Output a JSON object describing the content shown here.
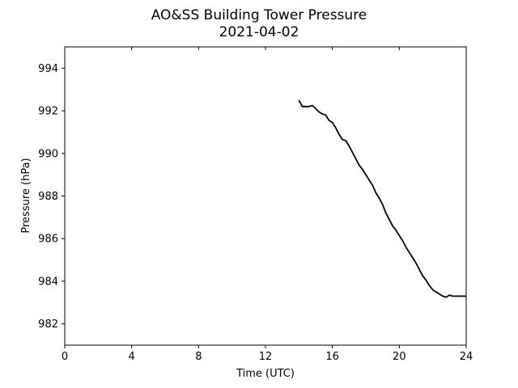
{
  "chart_data": {
    "type": "line",
    "title": "AO&SS Building Tower Pressure",
    "subtitle": "2021-04-02",
    "xlabel": "Time (UTC)",
    "ylabel": "Pressure (hPa)",
    "xlim": [
      0,
      24
    ],
    "ylim": [
      981,
      995
    ],
    "xticks": [
      0,
      4,
      8,
      12,
      16,
      20,
      24
    ],
    "yticks": [
      982,
      984,
      986,
      988,
      990,
      992,
      994
    ],
    "grid": false,
    "legend": "none",
    "line_color": "#000000",
    "series": [
      {
        "x": [
          14.0,
          14.2,
          14.4,
          14.6,
          14.8,
          15.0,
          15.2,
          15.4,
          15.6,
          15.8,
          16.0,
          16.2,
          16.4,
          16.6,
          16.8,
          17.0,
          17.2,
          17.4,
          17.6,
          17.8,
          18.0,
          18.2,
          18.4,
          18.6,
          18.8,
          19.0,
          19.2,
          19.4,
          19.6,
          19.8,
          20.0,
          20.2,
          20.4,
          20.6,
          20.8,
          21.0,
          21.2,
          21.4,
          21.6,
          21.8,
          22.0,
          22.2,
          22.4,
          22.6,
          22.8,
          23.0,
          23.2,
          23.4,
          23.6,
          23.8,
          24.0
        ],
        "y": [
          992.5,
          992.2,
          992.2,
          992.2,
          992.25,
          992.1,
          991.95,
          991.85,
          991.8,
          991.55,
          991.45,
          991.2,
          990.9,
          990.65,
          990.6,
          990.35,
          990.05,
          989.75,
          989.45,
          989.25,
          989.0,
          988.75,
          988.5,
          988.15,
          987.9,
          987.6,
          987.2,
          986.9,
          986.6,
          986.4,
          986.15,
          985.9,
          985.6,
          985.35,
          985.1,
          984.85,
          984.55,
          984.25,
          984.05,
          983.8,
          983.6,
          983.5,
          983.4,
          983.3,
          983.25,
          983.35,
          983.3,
          983.3,
          983.3,
          983.3,
          983.3
        ]
      }
    ]
  }
}
